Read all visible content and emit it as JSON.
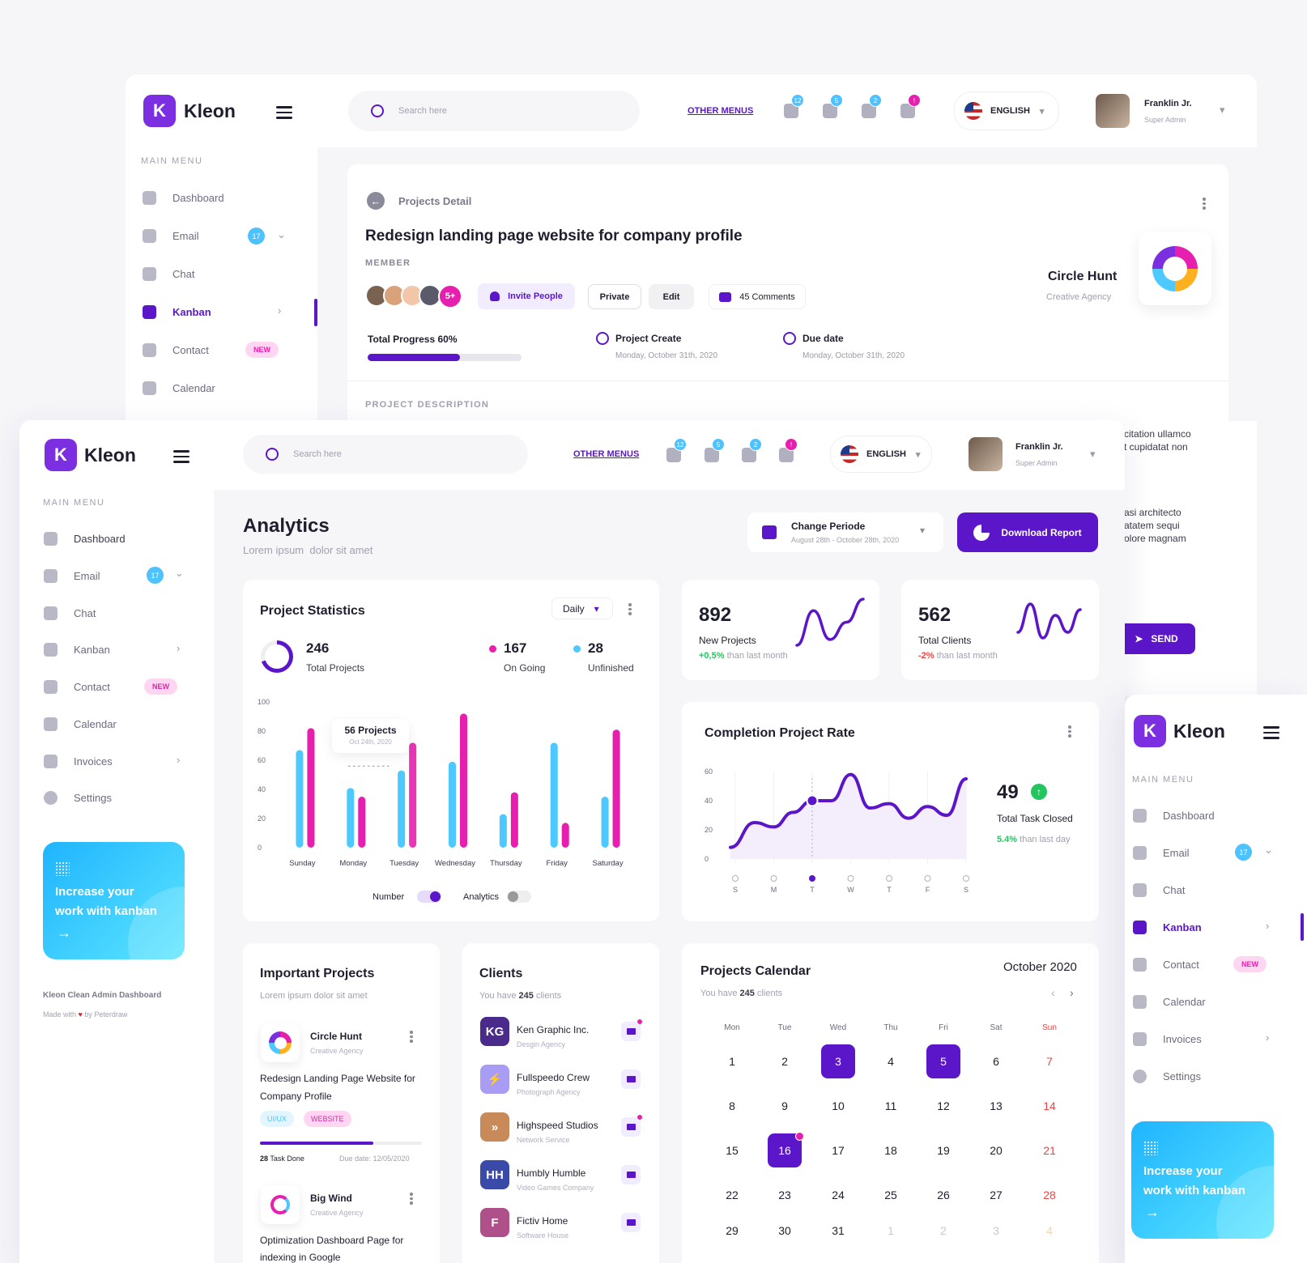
{
  "brand": {
    "name": "Kleon",
    "logo_letter": "K"
  },
  "sidebar": {
    "section_title": "MAIN MENU",
    "items": [
      {
        "label": "Dashboard",
        "icon": "gauge-icon"
      },
      {
        "label": "Email",
        "icon": "mail-icon",
        "badge": "17"
      },
      {
        "label": "Chat",
        "icon": "chat-icon"
      },
      {
        "label": "Kanban",
        "icon": "grid-icon"
      },
      {
        "label": "Contact",
        "icon": "contact-icon",
        "badge": "NEW"
      },
      {
        "label": "Calendar",
        "icon": "calendar-icon"
      },
      {
        "label": "Invoices",
        "icon": "invoice-icon"
      },
      {
        "label": "Settings",
        "icon": "gear-icon"
      }
    ],
    "promo": {
      "line1": "Increase your",
      "line2": "work with kanban",
      "arrow": "→"
    },
    "footer_title": "Kleon Clean Admin Dashboard",
    "footer_made": "Made with",
    "footer_by": "by Peterdraw"
  },
  "header": {
    "search_placeholder": "Search here",
    "other_menus": "OTHER MENUS",
    "notifications": [
      "12",
      "5",
      "2",
      "!"
    ],
    "language": "ENGLISH",
    "user_name": "Franklin Jr.",
    "user_role": "Super Admin"
  },
  "project_detail": {
    "breadcrumb": "Projects Detail",
    "title": "Redesign landing page website for company profile",
    "member_label": "MEMBER",
    "member_more": "5+",
    "invite": "Invite People",
    "private": "Private",
    "edit": "Edit",
    "comments": "45 Comments",
    "progress_label": "Total Progress 60%",
    "progress": 0.6,
    "create_label": "Project Create",
    "create_date": "Monday, October 31th, 2020",
    "due_label": "Due date",
    "due_date": "Monday, October 31th, 2020",
    "company": "Circle Hunt",
    "company_type": "Creative Agency",
    "description_label": "PROJECT DESCRIPTION",
    "desc_fragments": [
      "citation ullamco",
      "t cupidatat non",
      "asi architecto",
      "atatem sequi",
      "olore magnam"
    ],
    "send": "SEND"
  },
  "analytics": {
    "title": "Analytics",
    "subtitle": "Lorem ipsum  dolor sit amet",
    "period_label": "Change Periode",
    "period_range": "August 28th - October 28th, 2020",
    "download": "Download Report"
  },
  "project_stats": {
    "title": "Project Statistics",
    "filter": "Daily",
    "total": "246",
    "total_label": "Total Projects",
    "ongoing": "167",
    "ongoing_label": "On Going",
    "unfinished": "28",
    "unfinished_label": "Unfinished",
    "tooltip_value": "56 Projects",
    "tooltip_date": "Oct 24th, 2020",
    "toggle_number": "Number",
    "toggle_analytics": "Analytics"
  },
  "kpis": [
    {
      "value": "892",
      "label": "New Projects",
      "delta": "+0,5%",
      "delta_suffix": "than last month"
    },
    {
      "value": "562",
      "label": "Total Clients",
      "delta": "-2%",
      "delta_suffix": "than last month"
    }
  ],
  "completion": {
    "title": "Completion Project Rate",
    "value": "49",
    "label": "Total Task Closed",
    "delta": "5.4%",
    "delta_suffix": "than last day"
  },
  "chart_data": [
    {
      "type": "bar",
      "categories": [
        "Sunday",
        "Monday",
        "Tuesday",
        "Wednesday",
        "Thursday",
        "Friday",
        "Saturday"
      ],
      "series": [
        {
          "values": [
            67,
            41,
            53,
            59,
            23,
            72,
            35
          ],
          "color": "#4ec9ff"
        },
        {
          "values": [
            82,
            35,
            72,
            92,
            38,
            17,
            81
          ],
          "color": "#e61fae"
        }
      ],
      "ylim": [
        0,
        100
      ],
      "yticks": [
        0,
        20,
        40,
        60,
        80,
        100
      ]
    },
    {
      "type": "line",
      "categories": [
        "S",
        "M",
        "T",
        "W",
        "T",
        "F",
        "S"
      ],
      "ylim": [
        0,
        60
      ],
      "yticks": [
        0,
        20,
        40,
        60
      ],
      "x": [
        0,
        0.5,
        1,
        1.5,
        2,
        2.5,
        3,
        3.5,
        4,
        4.5,
        5,
        5.5,
        6
      ],
      "y": [
        8,
        25,
        22,
        32,
        40,
        40,
        58,
        35,
        38,
        28,
        36,
        30,
        55
      ],
      "highlight_index": 2
    },
    {
      "type": "line",
      "title": "",
      "values": [
        2,
        8,
        3,
        6,
        10
      ],
      "color": "#5b16c9"
    },
    {
      "type": "line",
      "values": [
        4,
        9,
        3,
        7,
        4,
        8
      ],
      "color": "#5b16c9"
    }
  ],
  "important_projects": {
    "title": "Important Projects",
    "subtitle": "Lorem ipsum dolor sit amet",
    "items": [
      {
        "company": "Circle Hunt",
        "type": "Creative Agency",
        "title1": "Redesign Landing Page Website for",
        "title2": "Company Profile",
        "tags": [
          "UI/UX",
          "WEBSITE"
        ],
        "tasks": "28",
        "tasks_label": "Task Done",
        "due": "Due date: 12/05/2020",
        "progress": 0.7
      },
      {
        "company": "Big Wind",
        "type": "Creative Agency",
        "title1": "Optimization Dashboard Page for",
        "title2": "indexing in Google"
      }
    ]
  },
  "clients": {
    "title": "Clients",
    "subtitle_pre": "You have",
    "count": "245",
    "subtitle_post": "clients",
    "items": [
      {
        "initials": "KG",
        "name": "Ken Graphic Inc.",
        "type": "Desgin Agency",
        "color": "#4a2a8a"
      },
      {
        "initials": "⚡",
        "name": "Fullspeedo Crew",
        "type": "Photograph Agency",
        "color": "#a89cf5"
      },
      {
        "initials": "»",
        "name": "Highspeed Studios",
        "type": "Network Service",
        "color": "#c98a5a"
      },
      {
        "initials": "HH",
        "name": "Humbly Humble",
        "type": "Video Games Company",
        "color": "#3a4aa8"
      },
      {
        "initials": "F",
        "name": "Fictiv Home",
        "type": "Software House",
        "color": "#b0508a"
      }
    ]
  },
  "calendar": {
    "title": "Projects Calendar",
    "subtitle_pre": "You have",
    "count": "245",
    "subtitle_post": "clients",
    "month": "October 2020",
    "weekdays": [
      "Mon",
      "Tue",
      "Wed",
      "Thu",
      "Fri",
      "Sat",
      "Sun"
    ],
    "days": [
      "1",
      "2",
      "3",
      "4",
      "5",
      "6",
      "7",
      "8",
      "9",
      "10",
      "11",
      "12",
      "13",
      "14",
      "15",
      "16",
      "17",
      "18",
      "19",
      "20",
      "21",
      "22",
      "23",
      "24",
      "25",
      "26",
      "27",
      "28",
      "29",
      "30",
      "31",
      "1",
      "2",
      "3",
      "4"
    ]
  }
}
